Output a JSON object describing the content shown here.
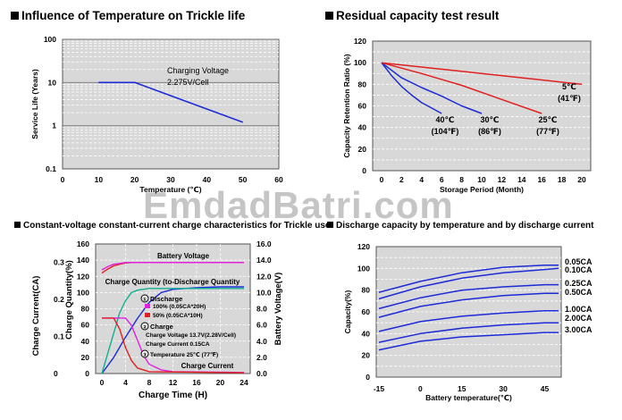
{
  "watermark": "EmdadBatri.com",
  "panels": {
    "p1_title": "Influence of Temperature on Trickle life",
    "p2_title": "Residual capacity test result",
    "p3_title": "Constant-voltage constant-current charge characteristics for Trickle use",
    "p4_title": "Discharge capacity by temperature and by discharge current"
  },
  "chart_data": [
    {
      "type": "line",
      "title": "Influence of Temperature on Trickle life",
      "xlabel": "Temperature (℃)",
      "ylabel": "Service Life (Years)",
      "xlim": [
        0,
        60
      ],
      "ylim": [
        0.1,
        100
      ],
      "yscale": "log",
      "xticks": [
        "0",
        "10",
        "20",
        "30",
        "40",
        "50",
        "60"
      ],
      "yticks": [
        "100",
        "10",
        "1",
        "0.1"
      ],
      "annotation": [
        "Charging Voltage",
        "2.275V/Cell"
      ],
      "series": [
        {
          "color": "#1d2bd6",
          "x": [
            10,
            20,
            50
          ],
          "y": [
            10,
            10,
            1.2
          ]
        }
      ]
    },
    {
      "type": "line",
      "title": "Residual capacity test result",
      "xlabel": "Storage Period (Month)",
      "ylabel": "Capacity Retention Ratio (%)",
      "xlim": [
        0,
        20
      ],
      "ylim": [
        0,
        120
      ],
      "xticks": [
        "0",
        "2",
        "4",
        "6",
        "8",
        "10",
        "12",
        "14",
        "16",
        "18",
        "20"
      ],
      "yticks": [
        "0",
        "20",
        "40",
        "60",
        "80",
        "100",
        "120"
      ],
      "series": [
        {
          "name": "40℃ (104℉)",
          "color": "#1d2bd6",
          "x": [
            0,
            1,
            2,
            3,
            4,
            5,
            6
          ],
          "y": [
            100,
            88,
            78,
            70,
            63,
            58,
            53
          ]
        },
        {
          "name": "30℃ (86℉)",
          "color": "#1d2bd6",
          "x": [
            0,
            2,
            4,
            6,
            8,
            10
          ],
          "y": [
            100,
            86,
            77,
            69,
            60,
            53
          ]
        },
        {
          "name": "25℃ (77℉)",
          "color": "#e02020",
          "x": [
            0,
            4,
            8,
            12,
            16
          ],
          "y": [
            100,
            90,
            79,
            66,
            53
          ]
        },
        {
          "name": "5℃ (41℉)",
          "color": "#e02020",
          "x": [
            0,
            5,
            10,
            15,
            20
          ],
          "y": [
            100,
            95,
            90,
            85,
            80
          ]
        }
      ],
      "labels": [
        {
          "top": "40℃",
          "bottom": "(104℉)"
        },
        {
          "top": "30℃",
          "bottom": "(86℉)"
        },
        {
          "top": "25℃",
          "bottom": "(77℉)"
        },
        {
          "top": "5℃",
          "bottom": "(41℉)"
        }
      ]
    },
    {
      "type": "line",
      "title": "Constant-voltage constant-current charge characteristics for Trickle use",
      "xlabel": "Charge Time (H)",
      "ylabel_left1": "Charge Current(CA)",
      "ylabel_left2": "Charge Quantity(%)",
      "ylabel_right": "Battery Voltage(V)",
      "xlim": [
        0,
        24
      ],
      "xticks": [
        "0",
        "4",
        "8",
        "12",
        "16",
        "20",
        "24"
      ],
      "ca_ticks": [
        "0",
        "0.1",
        "0.2",
        "0.3"
      ],
      "quantity_ticks": [
        "0",
        "20",
        "40",
        "60",
        "80",
        "100",
        "120",
        "140",
        "160"
      ],
      "voltage_ticks": [
        "0.0",
        "2.0",
        "4.0",
        "6.0",
        "8.0",
        "10.0",
        "12.0",
        "14.0",
        "16.0"
      ],
      "curve_labels": [
        "Battery Voltage",
        "Charge Quantity (to-Discharge Quantity",
        "Charge Current"
      ],
      "legend": {
        "discharge_heading": "Discharge",
        "discharge_100": "100% (0.05CA*20H)",
        "discharge_50": "50% (0.05CA*10H)",
        "charge_heading": "Charge",
        "charge_voltage": "Charge Voltage  13.7V(2.28V/Cell)",
        "charge_current": "Charge Current  0.15CA",
        "temperature": "Temperature  25℃ (77℉)",
        "c1": "①",
        "c2": "②",
        "c3": "③"
      },
      "series": [
        {
          "name": "Battery Voltage (100%)",
          "color": "#e02020",
          "axis": "voltage",
          "x": [
            0,
            1,
            2,
            3,
            4,
            5,
            6,
            24
          ],
          "y": [
            12.4,
            12.9,
            13.3,
            13.5,
            13.65,
            13.7,
            13.7,
            13.7
          ]
        },
        {
          "name": "Battery Voltage (50%)",
          "color": "#e020e0",
          "axis": "voltage",
          "x": [
            0,
            1,
            2,
            3,
            4,
            5,
            24
          ],
          "y": [
            12.8,
            13.2,
            13.5,
            13.6,
            13.7,
            13.7,
            13.7
          ]
        },
        {
          "name": "Charge Quantity (100%)",
          "color": "#1d2bd6",
          "axis": "quantity",
          "x": [
            0,
            2,
            4,
            6,
            8,
            10,
            12,
            16,
            20,
            24
          ],
          "y": [
            0,
            20,
            45,
            68,
            88,
            100,
            104,
            106,
            107,
            107
          ]
        },
        {
          "name": "Charge Quantity (50%)",
          "color": "#10b090",
          "axis": "quantity",
          "x": [
            0,
            1,
            2,
            3,
            4,
            5,
            6,
            8,
            12,
            16,
            24
          ],
          "y": [
            0,
            25,
            50,
            75,
            90,
            100,
            103,
            105,
            105,
            105,
            105
          ]
        },
        {
          "name": "Charge Current (100%)",
          "color": "#e020e0",
          "axis": "ca",
          "x": [
            0,
            4,
            5,
            6,
            7,
            8,
            10,
            12,
            24
          ],
          "y": [
            0.15,
            0.15,
            0.13,
            0.09,
            0.05,
            0.025,
            0.01,
            0.005,
            0.003
          ]
        },
        {
          "name": "Charge Current (50%)",
          "color": "#e02020",
          "axis": "ca",
          "x": [
            0,
            2,
            3,
            4,
            5,
            6,
            8,
            24
          ],
          "y": [
            0.15,
            0.15,
            0.12,
            0.07,
            0.035,
            0.015,
            0.005,
            0.002
          ]
        }
      ]
    },
    {
      "type": "line",
      "title": "Discharge capacity by temperature and by discharge current",
      "xlabel": "Battery temperature(℃)",
      "ylabel": "Capacity(%)",
      "xlim": [
        -15,
        50
      ],
      "ylim": [
        0,
        120
      ],
      "xticks": [
        "-15",
        "0",
        "15",
        "30",
        "45"
      ],
      "yticks": [
        "0",
        "20",
        "40",
        "60",
        "80",
        "100",
        "120"
      ],
      "series": [
        {
          "name": "0.05CA",
          "color": "#1d2bd6",
          "x": [
            -15,
            0,
            15,
            30,
            45,
            50
          ],
          "y": [
            78,
            88,
            96,
            101,
            103,
            103
          ]
        },
        {
          "name": "0.10CA",
          "color": "#1d2bd6",
          "x": [
            -15,
            0,
            15,
            30,
            45,
            50
          ],
          "y": [
            72,
            83,
            91,
            96,
            99,
            100
          ]
        },
        {
          "name": "0.25CA",
          "color": "#1d2bd6",
          "x": [
            -15,
            0,
            15,
            30,
            45,
            50
          ],
          "y": [
            63,
            73,
            80,
            83,
            85,
            85
          ]
        },
        {
          "name": "0.50CA",
          "color": "#1d2bd6",
          "x": [
            -15,
            0,
            15,
            30,
            45,
            50
          ],
          "y": [
            55,
            65,
            71,
            75,
            77,
            77
          ]
        },
        {
          "name": "1.00CA",
          "color": "#1d2bd6",
          "x": [
            -15,
            0,
            15,
            30,
            45,
            50
          ],
          "y": [
            42,
            51,
            56,
            59,
            61,
            61
          ]
        },
        {
          "name": "2.00CA",
          "color": "#1d2bd6",
          "x": [
            -15,
            0,
            15,
            30,
            45,
            50
          ],
          "y": [
            32,
            40,
            45,
            48,
            50,
            50
          ]
        },
        {
          "name": "3.00CA",
          "color": "#1d2bd6",
          "x": [
            -15,
            0,
            15,
            30,
            45,
            50
          ],
          "y": [
            25,
            33,
            37,
            39,
            41,
            41
          ]
        }
      ]
    }
  ]
}
